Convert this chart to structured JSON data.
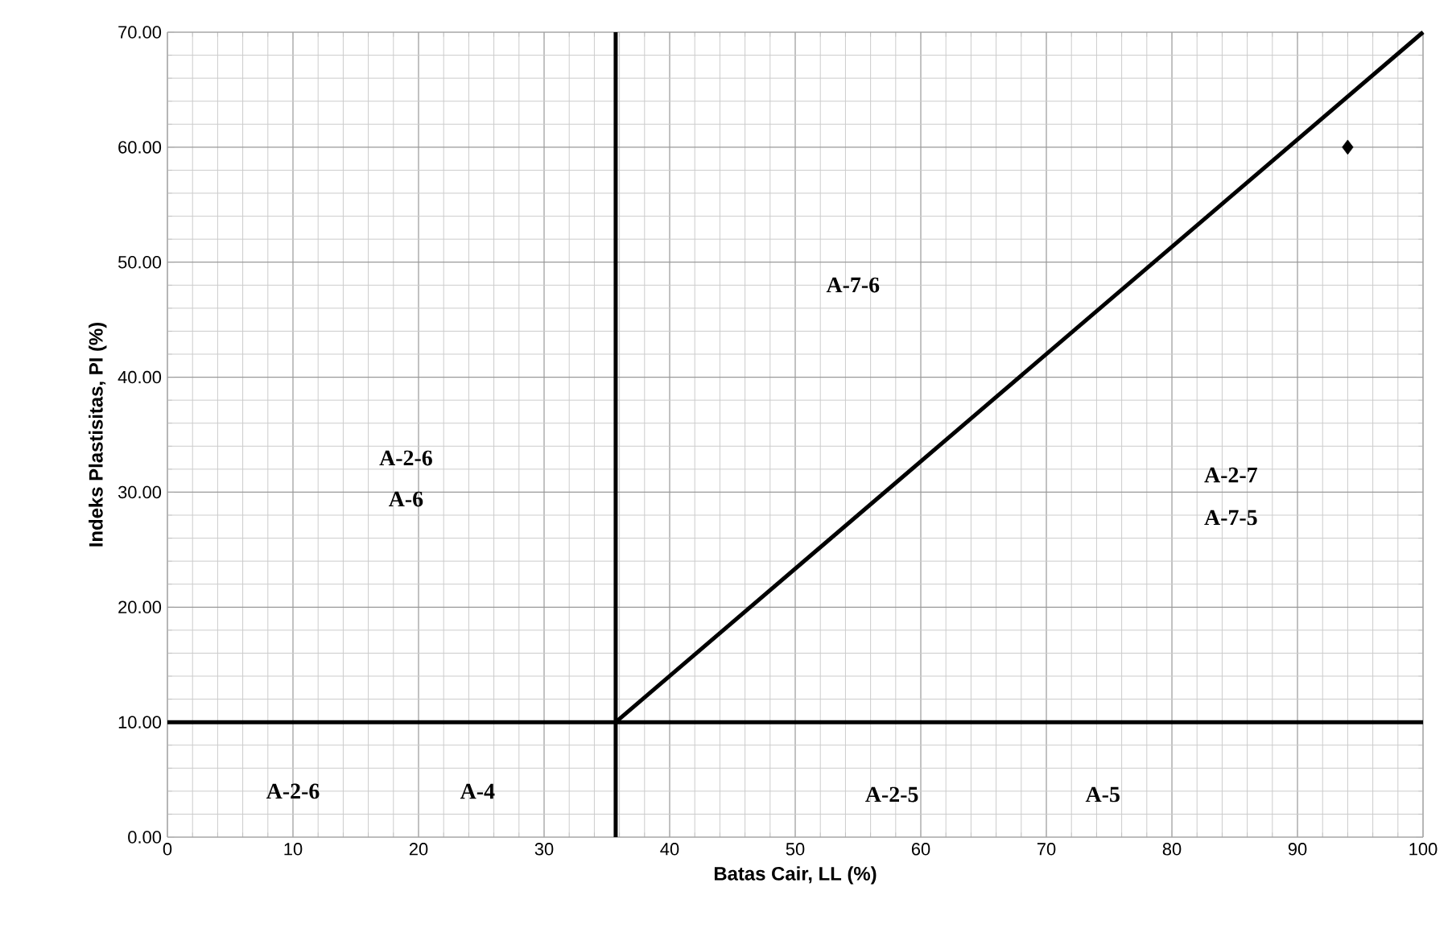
{
  "chart_data": {
    "type": "line",
    "xlabel": "Batas Cair, LL (%)",
    "ylabel": "Indeks Plastisitas, PI (%)",
    "xlim": [
      0,
      100
    ],
    "xticks": [
      0,
      10,
      20,
      30,
      40,
      50,
      60,
      70,
      80,
      90,
      100
    ],
    "ylim": [
      0,
      70
    ],
    "yticks": [
      {
        "value": 0,
        "label": "0.00"
      },
      {
        "value": 10,
        "label": "10.00"
      },
      {
        "value": 20,
        "label": "20.00"
      },
      {
        "value": 30,
        "label": "30.00"
      },
      {
        "value": 40,
        "label": "40.00"
      },
      {
        "value": 50,
        "label": "50.00"
      },
      {
        "value": 60,
        "label": "60.00"
      },
      {
        "value": 70,
        "label": "70.00"
      }
    ],
    "grid": true,
    "series": [
      {
        "color": "#000000",
        "marker": "none",
        "x": [
          35.7,
          35.7
        ],
        "values": [
          0,
          70
        ]
      },
      {
        "color": "#000000",
        "marker": "none",
        "x": [
          0,
          100
        ],
        "values": [
          10,
          10
        ]
      },
      {
        "color": "#000000",
        "marker": "none",
        "x": [
          35.7,
          100
        ],
        "values": [
          10,
          70
        ]
      },
      {
        "type": "scatter",
        "color": "#000000",
        "marker": "diamond",
        "x": [
          94
        ],
        "values": [
          60
        ]
      }
    ],
    "annotations": [
      "A-7-6",
      "A-2-6",
      "A-6",
      "A-2-7",
      "A-7-5",
      "A-2-6",
      "A-4",
      "A-2-5",
      "A-5"
    ]
  }
}
